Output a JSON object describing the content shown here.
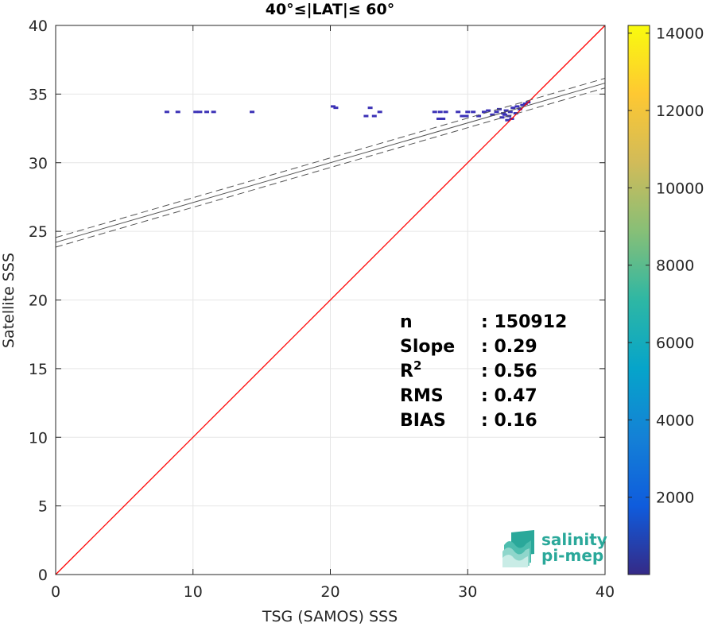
{
  "chart_data": {
    "type": "heatmap",
    "title": "40°≤|LAT|≤ 60°",
    "xlabel": "TSG (SAMOS) SSS",
    "ylabel": "Satellite SSS",
    "xlim": [
      0,
      40
    ],
    "ylim": [
      0,
      40
    ],
    "x_ticks": [
      0,
      10,
      20,
      30,
      40
    ],
    "y_ticks": [
      0,
      5,
      10,
      15,
      20,
      25,
      30,
      35,
      40
    ],
    "grid": true,
    "one_to_one_line": {
      "color": "#ff0000",
      "from": [
        0,
        0
      ],
      "to": [
        40,
        40
      ]
    },
    "regression_line": {
      "intercept": 24.2,
      "slope": 0.29,
      "color": "#555555"
    },
    "confidence_band_offset": 0.35,
    "density_points": [
      {
        "x": 8.1,
        "y": 33.7,
        "count": 1
      },
      {
        "x": 8.9,
        "y": 33.7,
        "count": 1
      },
      {
        "x": 10.2,
        "y": 33.7,
        "count": 1
      },
      {
        "x": 10.5,
        "y": 33.7,
        "count": 1
      },
      {
        "x": 11.0,
        "y": 33.7,
        "count": 1
      },
      {
        "x": 11.5,
        "y": 33.7,
        "count": 1
      },
      {
        "x": 14.3,
        "y": 33.7,
        "count": 1
      },
      {
        "x": 20.2,
        "y": 34.1,
        "count": 1
      },
      {
        "x": 20.4,
        "y": 34.0,
        "count": 1
      },
      {
        "x": 22.6,
        "y": 33.4,
        "count": 1
      },
      {
        "x": 22.9,
        "y": 34.0,
        "count": 1
      },
      {
        "x": 23.2,
        "y": 33.4,
        "count": 1
      },
      {
        "x": 23.6,
        "y": 33.7,
        "count": 1
      },
      {
        "x": 27.6,
        "y": 33.7,
        "count": 1
      },
      {
        "x": 28.0,
        "y": 33.7,
        "count": 1
      },
      {
        "x": 28.4,
        "y": 33.7,
        "count": 1
      },
      {
        "x": 27.9,
        "y": 33.2,
        "count": 1
      },
      {
        "x": 28.2,
        "y": 33.2,
        "count": 1
      },
      {
        "x": 29.3,
        "y": 33.7,
        "count": 1
      },
      {
        "x": 29.6,
        "y": 33.4,
        "count": 1
      },
      {
        "x": 29.9,
        "y": 33.4,
        "count": 1
      },
      {
        "x": 30.0,
        "y": 33.7,
        "count": 1
      },
      {
        "x": 30.4,
        "y": 33.7,
        "count": 1
      },
      {
        "x": 30.8,
        "y": 33.4,
        "count": 1
      },
      {
        "x": 31.2,
        "y": 33.7,
        "count": 1
      },
      {
        "x": 31.5,
        "y": 33.8,
        "count": 1
      },
      {
        "x": 31.8,
        "y": 33.5,
        "count": 1
      },
      {
        "x": 32.1,
        "y": 33.7,
        "count": 1
      },
      {
        "x": 32.3,
        "y": 33.9,
        "count": 1
      },
      {
        "x": 32.5,
        "y": 33.3,
        "count": 1
      },
      {
        "x": 32.6,
        "y": 33.6,
        "count": 1
      },
      {
        "x": 32.8,
        "y": 33.8,
        "count": 1
      },
      {
        "x": 32.9,
        "y": 33.1,
        "count": 1
      },
      {
        "x": 33.0,
        "y": 33.4,
        "count": 1
      },
      {
        "x": 33.1,
        "y": 33.7,
        "count": 1
      },
      {
        "x": 33.3,
        "y": 34.0,
        "count": 1
      },
      {
        "x": 33.5,
        "y": 33.6,
        "count": 1
      },
      {
        "x": 33.6,
        "y": 34.1,
        "count": 1
      },
      {
        "x": 33.8,
        "y": 33.9,
        "count": 1
      },
      {
        "x": 34.0,
        "y": 34.2,
        "count": 1
      },
      {
        "x": 34.2,
        "y": 34.3,
        "count": 1
      },
      {
        "x": 34.4,
        "y": 34.4,
        "count": 1
      },
      {
        "x": 33.2,
        "y": 33.2,
        "count": 1
      },
      {
        "x": 32.7,
        "y": 33.5,
        "count": 1
      }
    ],
    "colorbar": {
      "ticks": [
        2000,
        4000,
        6000,
        8000,
        10000,
        12000,
        14000
      ],
      "range": [
        0,
        14200
      ],
      "colormap": [
        "#352a87",
        "#0f5cdd",
        "#1481d6",
        "#06a4ca",
        "#2eb7a4",
        "#87bf77",
        "#d1bb59",
        "#fec832",
        "#f9fb0e"
      ]
    },
    "stats": [
      {
        "label": "n",
        "value": ": 150912",
        "superscript": ""
      },
      {
        "label": "Slope",
        "value": ": 0.29",
        "superscript": ""
      },
      {
        "label": "R",
        "value": ": 0.56",
        "superscript": "2"
      },
      {
        "label": "RMS",
        "value": ": 0.47",
        "superscript": ""
      },
      {
        "label": "BIAS",
        "value": ": 0.16",
        "superscript": ""
      }
    ],
    "logo": {
      "line1": "salinity",
      "line2": "pi-mep",
      "color": "#2aa89a"
    }
  }
}
